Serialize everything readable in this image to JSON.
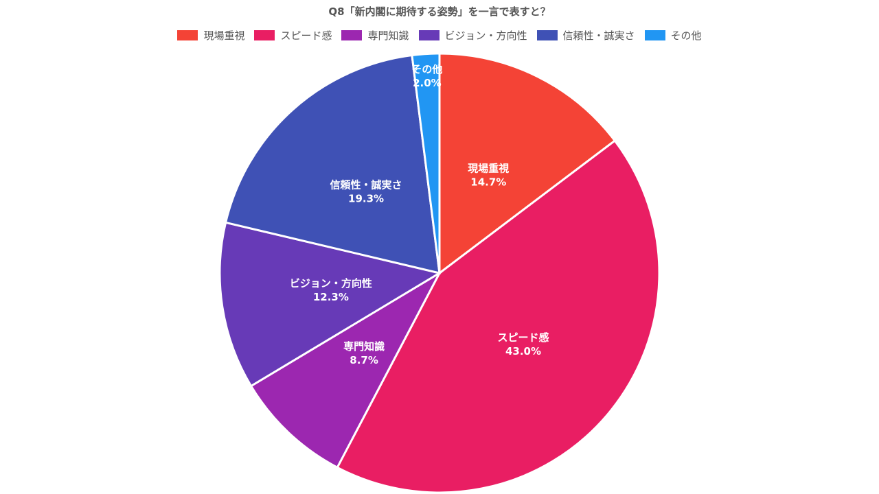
{
  "chart_data": {
    "type": "pie",
    "title": "Q8「新内閣に期待する姿勢」を一言で表すと？",
    "legend_position": "top",
    "start_angle": "top-clockwise",
    "slices": [
      {
        "label": "現場重視",
        "value": 14.7,
        "display": "14.7%",
        "color": "#F44336"
      },
      {
        "label": "スピード感",
        "value": 43.0,
        "display": "43.0%",
        "color": "#E91E63"
      },
      {
        "label": "専門知識",
        "value": 8.7,
        "display": "8.7%",
        "color": "#9C27B0"
      },
      {
        "label": "ビジョン・方向性",
        "value": 12.3,
        "display": "12.3%",
        "color": "#673AB7"
      },
      {
        "label": "信頼性・誠実さ",
        "value": 19.3,
        "display": "19.3%",
        "color": "#3F51B5"
      },
      {
        "label": "その他",
        "value": 2.0,
        "display": "2.0%",
        "color": "#2196F3"
      }
    ]
  }
}
